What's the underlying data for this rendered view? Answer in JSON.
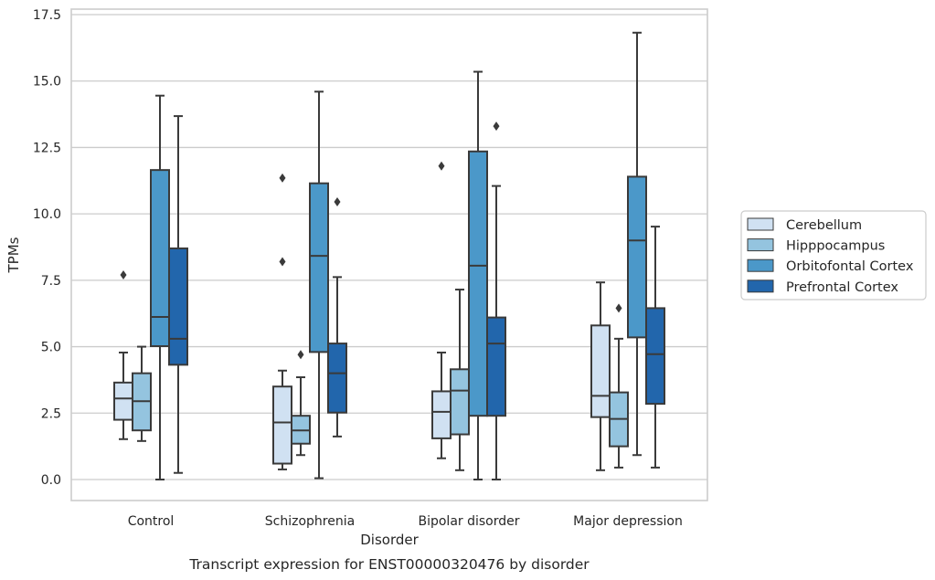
{
  "chart_data": {
    "type": "box",
    "caption": "Transcript expression for ENST00000320476 by disorder",
    "xlabel": "Disorder",
    "ylabel": "TPMs",
    "ylim": [
      -0.8,
      17.6
    ],
    "yticks": [
      0.0,
      2.5,
      5.0,
      7.5,
      10.0,
      12.5,
      15.0,
      17.5
    ],
    "ytick_labels": [
      "0.0",
      "2.5",
      "5.0",
      "7.5",
      "10.0",
      "12.5",
      "15.0",
      "17.5"
    ],
    "grid": "horizontal",
    "legend_position": "right",
    "categories": [
      "Control",
      "Schizophrenia",
      "Bipolar disorder",
      "Major depression"
    ],
    "series": [
      {
        "name": "Cerebellum",
        "color": "#d0e1f2",
        "boxes": [
          {
            "whisker_low": 1.52,
            "q1": 2.25,
            "median": 3.05,
            "q3": 3.65,
            "whisker_high": 4.78,
            "outliers": [
              7.7
            ]
          },
          {
            "whisker_low": 0.38,
            "q1": 0.6,
            "median": 2.15,
            "q3": 3.5,
            "whisker_high": 4.1,
            "outliers": [
              8.2,
              11.35
            ]
          },
          {
            "whisker_low": 0.8,
            "q1": 1.55,
            "median": 2.55,
            "q3": 3.32,
            "whisker_high": 4.78,
            "outliers": [
              11.8
            ]
          },
          {
            "whisker_low": 0.35,
            "q1": 2.35,
            "median": 3.15,
            "q3": 5.8,
            "whisker_high": 7.42,
            "outliers": []
          }
        ]
      },
      {
        "name": "Hipppocampus",
        "color": "#94c4df",
        "boxes": [
          {
            "whisker_low": 1.45,
            "q1": 1.85,
            "median": 2.95,
            "q3": 4.0,
            "whisker_high": 5.0,
            "outliers": []
          },
          {
            "whisker_low": 0.92,
            "q1": 1.35,
            "median": 1.85,
            "q3": 2.4,
            "whisker_high": 3.85,
            "outliers": [
              4.7
            ]
          },
          {
            "whisker_low": 0.35,
            "q1": 1.7,
            "median": 3.35,
            "q3": 4.15,
            "whisker_high": 7.15,
            "outliers": []
          },
          {
            "whisker_low": 0.45,
            "q1": 1.25,
            "median": 2.28,
            "q3": 3.28,
            "whisker_high": 5.3,
            "outliers": [
              6.45
            ]
          }
        ]
      },
      {
        "name": "Orbitofontal Cortex",
        "color": "#4b98c9",
        "boxes": [
          {
            "whisker_low": 0.0,
            "q1": 5.02,
            "median": 6.12,
            "q3": 11.65,
            "whisker_high": 14.45,
            "outliers": []
          },
          {
            "whisker_low": 0.05,
            "q1": 4.8,
            "median": 8.42,
            "q3": 11.15,
            "whisker_high": 14.6,
            "outliers": []
          },
          {
            "whisker_low": 0.0,
            "q1": 2.4,
            "median": 8.05,
            "q3": 12.35,
            "whisker_high": 15.35,
            "outliers": []
          },
          {
            "whisker_low": 0.92,
            "q1": 5.35,
            "median": 9.0,
            "q3": 11.4,
            "whisker_high": 16.82,
            "outliers": []
          }
        ]
      },
      {
        "name": "Prefrontal Cortex",
        "color": "#2266ac",
        "boxes": [
          {
            "whisker_low": 0.25,
            "q1": 4.32,
            "median": 5.3,
            "q3": 8.7,
            "whisker_high": 13.68,
            "outliers": []
          },
          {
            "whisker_low": 1.62,
            "q1": 2.52,
            "median": 4.0,
            "q3": 5.12,
            "whisker_high": 7.62,
            "outliers": [
              10.45
            ]
          },
          {
            "whisker_low": 0.0,
            "q1": 2.4,
            "median": 5.12,
            "q3": 6.1,
            "whisker_high": 11.05,
            "outliers": [
              13.3
            ]
          },
          {
            "whisker_low": 0.45,
            "q1": 2.85,
            "median": 4.72,
            "q3": 6.45,
            "whisker_high": 9.52,
            "outliers": []
          }
        ]
      }
    ]
  }
}
